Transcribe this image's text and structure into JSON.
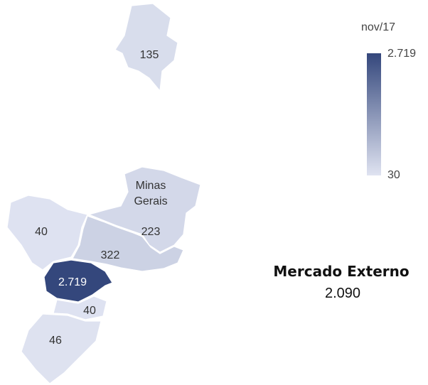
{
  "map": {
    "legend_title": "nov/17",
    "scale": {
      "min": 30,
      "max": {
        "value": 2719,
        "label": "2.719"
      },
      "colors": {
        "min": "#dfe3f1",
        "max": "#34477c"
      }
    },
    "regions": [
      {
        "value": 135
      },
      {
        "name": "Minas Gerais",
        "value": 223
      },
      {
        "value": 40
      },
      {
        "value": 322
      },
      {
        "value": {
          "value": 2719,
          "label": "2.719"
        }
      },
      {
        "value": 40
      },
      {
        "value": 46
      }
    ],
    "summary": {
      "label": "Mercado Externo",
      "value": {
        "value": 2090,
        "label": "2.090"
      }
    }
  }
}
